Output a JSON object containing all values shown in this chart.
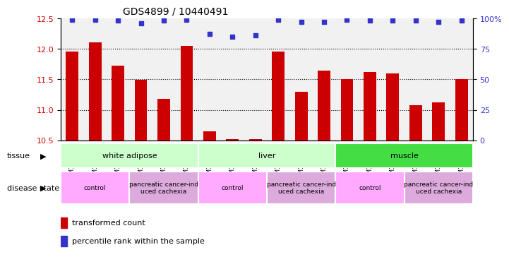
{
  "title": "GDS4899 / 10440491",
  "samples": [
    "GSM1255438",
    "GSM1255439",
    "GSM1255441",
    "GSM1255437",
    "GSM1255440",
    "GSM1255442",
    "GSM1255450",
    "GSM1255451",
    "GSM1255453",
    "GSM1255449",
    "GSM1255452",
    "GSM1255454",
    "GSM1255444",
    "GSM1255445",
    "GSM1255447",
    "GSM1255443",
    "GSM1255446",
    "GSM1255448"
  ],
  "bar_values": [
    11.95,
    12.1,
    11.72,
    11.49,
    11.18,
    12.05,
    10.65,
    10.52,
    10.52,
    11.96,
    11.3,
    11.64,
    11.5,
    11.62,
    11.6,
    11.08,
    11.12,
    11.5
  ],
  "dot_values": [
    99,
    99,
    98,
    96,
    98,
    99,
    87,
    85,
    86,
    99,
    97,
    97,
    99,
    98,
    98,
    98,
    97,
    98
  ],
  "ylim_left": [
    10.5,
    12.5
  ],
  "ylim_right": [
    0,
    100
  ],
  "yticks_left": [
    10.5,
    11.0,
    11.5,
    12.0,
    12.5
  ],
  "yticks_right": [
    0,
    25,
    50,
    75,
    100
  ],
  "bar_color": "#cc0000",
  "dot_color": "#3333cc",
  "tissue_groups": [
    {
      "label": "white adipose",
      "start": 0,
      "end": 6,
      "color": "#ccffcc"
    },
    {
      "label": "liver",
      "start": 6,
      "end": 12,
      "color": "#ccffcc"
    },
    {
      "label": "muscle",
      "start": 12,
      "end": 18,
      "color": "#44dd44"
    }
  ],
  "disease_groups": [
    {
      "label": "control",
      "start": 0,
      "end": 3,
      "color": "#ffaaff"
    },
    {
      "label": "pancreatic cancer-ind\nuced cachexia",
      "start": 3,
      "end": 6,
      "color": "#ddaadd"
    },
    {
      "label": "control",
      "start": 6,
      "end": 9,
      "color": "#ffaaff"
    },
    {
      "label": "pancreatic cancer-ind\nuced cachexia",
      "start": 9,
      "end": 12,
      "color": "#ddaadd"
    },
    {
      "label": "control",
      "start": 12,
      "end": 15,
      "color": "#ffaaff"
    },
    {
      "label": "pancreatic cancer-ind\nuced cachexia",
      "start": 15,
      "end": 18,
      "color": "#ddaadd"
    }
  ],
  "left_axis_color": "#cc0000",
  "right_axis_color": "#3333cc",
  "sample_bg_color": "#d8d8d8",
  "grid_linestyle": ":",
  "grid_color": "black",
  "grid_linewidth": 0.8,
  "bar_width": 0.55,
  "dot_size": 18
}
